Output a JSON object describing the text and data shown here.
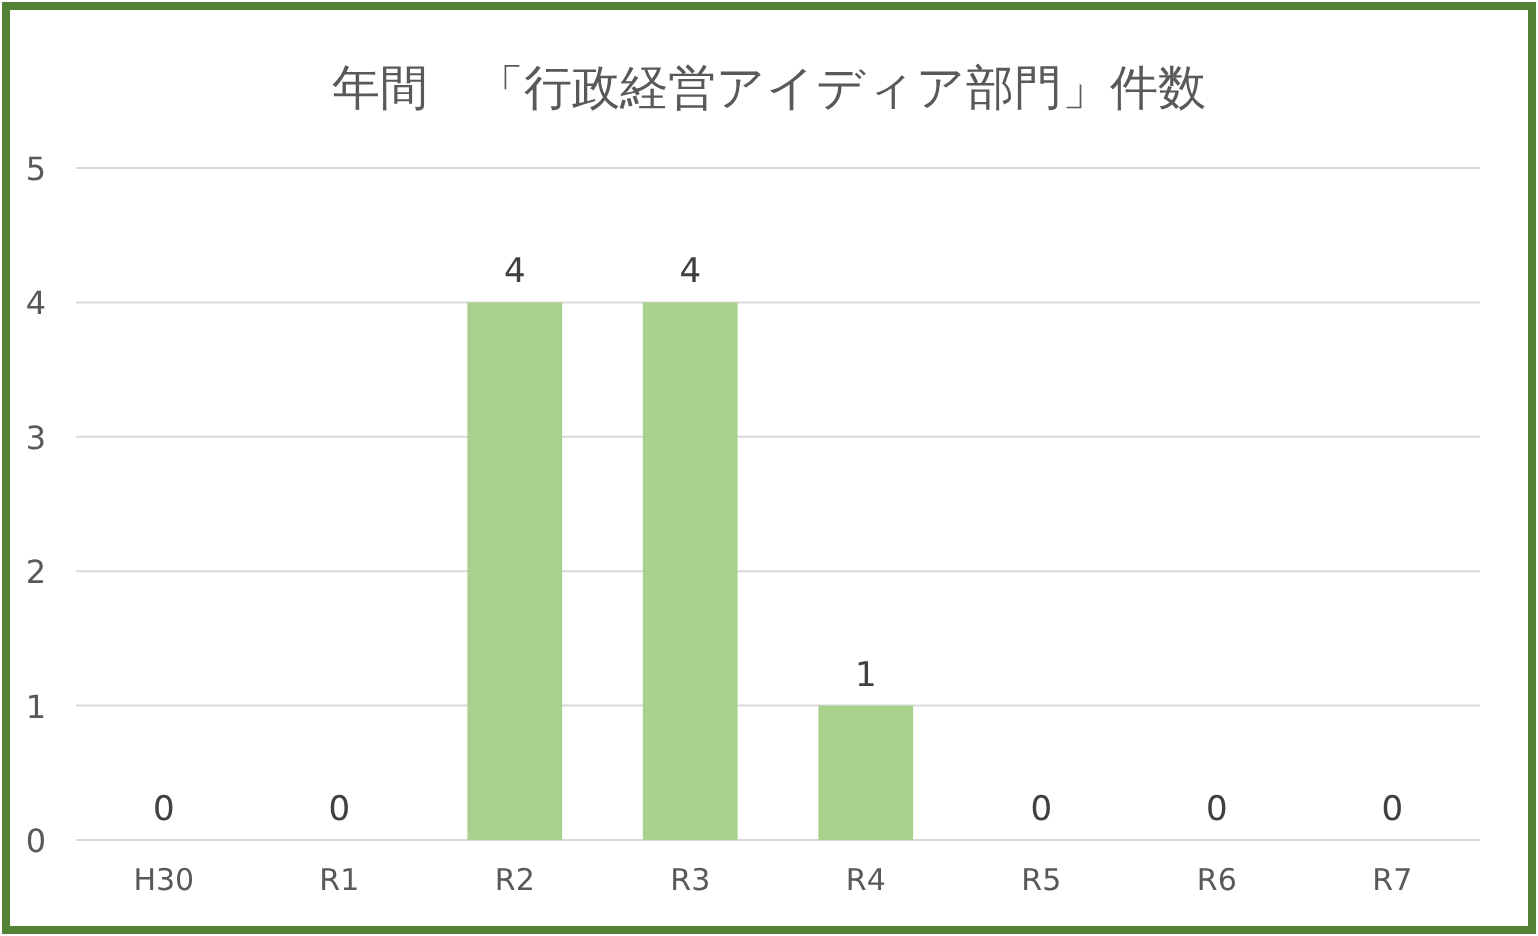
{
  "chart_data": {
    "type": "bar",
    "title": "年間　「行政経営アイディア部門」件数",
    "categories": [
      "H30",
      "R1",
      "R2",
      "R3",
      "R4",
      "R5",
      "R6",
      "R7"
    ],
    "values": [
      0,
      0,
      4,
      4,
      1,
      0,
      0,
      0
    ],
    "color": "#a9d18e",
    "ylim": [
      0,
      5
    ],
    "yticks": [
      0,
      1,
      2,
      3,
      4,
      5
    ],
    "grid": "y",
    "data_labels": true
  }
}
